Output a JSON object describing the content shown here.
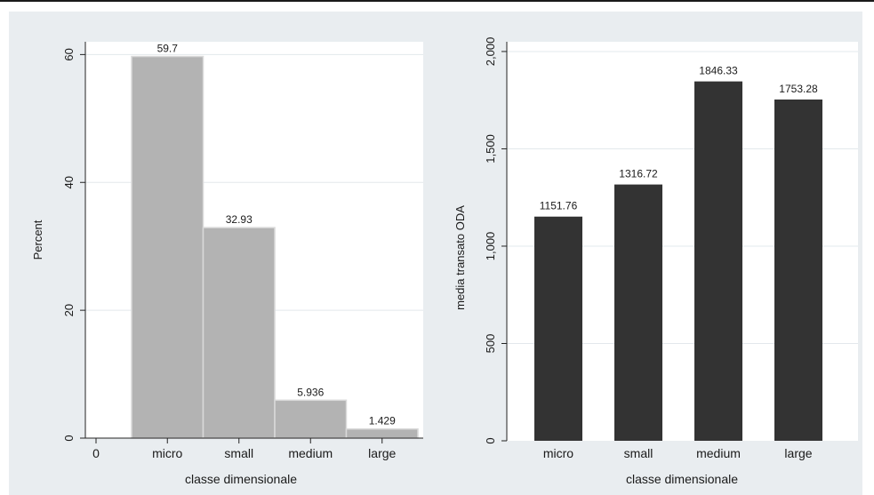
{
  "chart_data": [
    {
      "type": "bar",
      "xlabel": "classe dimensionale",
      "ylabel": "Percent",
      "categories": [
        "micro",
        "small",
        "medium",
        "large"
      ],
      "values": [
        59.7,
        32.93,
        5.936,
        1.429
      ],
      "data_labels": [
        "59.7",
        "32.93",
        "5.936",
        "1.429"
      ],
      "x_ticks": [
        "0",
        "micro",
        "small",
        "medium",
        "large"
      ],
      "y_ticks": [
        "0",
        "20",
        "40",
        "60"
      ],
      "ylim": [
        0,
        62
      ],
      "grid": true,
      "bar_color": "#b3b3b3",
      "bar_edge_color": "#d9d9d9"
    },
    {
      "type": "bar",
      "xlabel": "classe dimensionale",
      "ylabel": "media transato ODA",
      "categories": [
        "micro",
        "small",
        "medium",
        "large"
      ],
      "values": [
        1151.76,
        1316.72,
        1846.33,
        1753.28
      ],
      "data_labels": [
        "1151.76",
        "1316.72",
        "1846.33",
        "1753.28"
      ],
      "y_ticks": [
        "0",
        "500",
        "1,000",
        "1,500",
        "2,000"
      ],
      "ylim": [
        0,
        2050
      ],
      "grid": true,
      "bar_color": "#333333"
    }
  ]
}
